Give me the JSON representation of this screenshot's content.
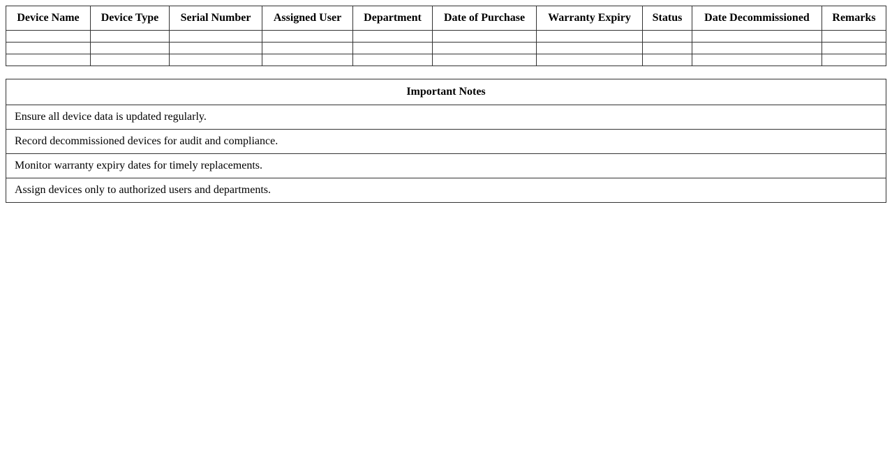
{
  "inventory": {
    "columns": [
      "Device Name",
      "Device Type",
      "Serial Number",
      "Assigned User",
      "Department",
      "Date of Purchase",
      "Warranty Expiry",
      "Status",
      "Date Decommissioned",
      "Remarks"
    ],
    "rows": [
      [
        "",
        "",
        "",
        "",
        "",
        "",
        "",
        "",
        "",
        ""
      ],
      [
        "",
        "",
        "",
        "",
        "",
        "",
        "",
        "",
        "",
        ""
      ],
      [
        "",
        "",
        "",
        "",
        "",
        "",
        "",
        "",
        "",
        ""
      ]
    ]
  },
  "notes": {
    "title": "Important Notes",
    "items": [
      "Ensure all device data is updated regularly.",
      "Record decommissioned devices for audit and compliance.",
      "Monitor warranty expiry dates for timely replacements.",
      "Assign devices only to authorized users and departments."
    ]
  }
}
